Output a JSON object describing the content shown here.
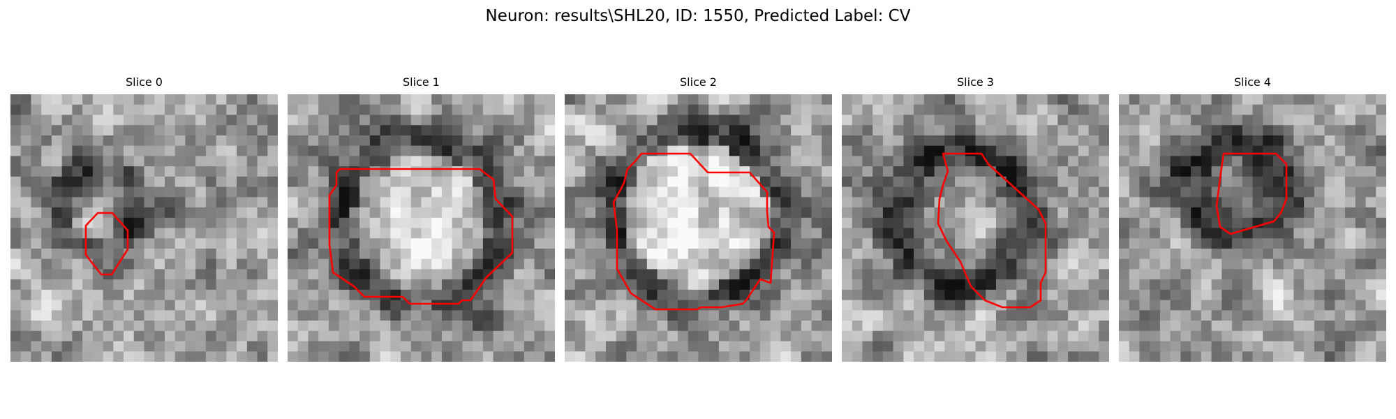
{
  "figure": {
    "title": "Neuron: results\\SHL20, ID: 1550, Predicted Label: CV"
  },
  "colors": {
    "contour": "#ff0000",
    "background": "#ffffff",
    "text": "#000000"
  },
  "panels": [
    {
      "title": "Slice 0"
    },
    {
      "title": "Slice 1"
    },
    {
      "title": "Slice 2"
    },
    {
      "title": "Slice 3"
    },
    {
      "title": "Slice 4"
    }
  ]
}
